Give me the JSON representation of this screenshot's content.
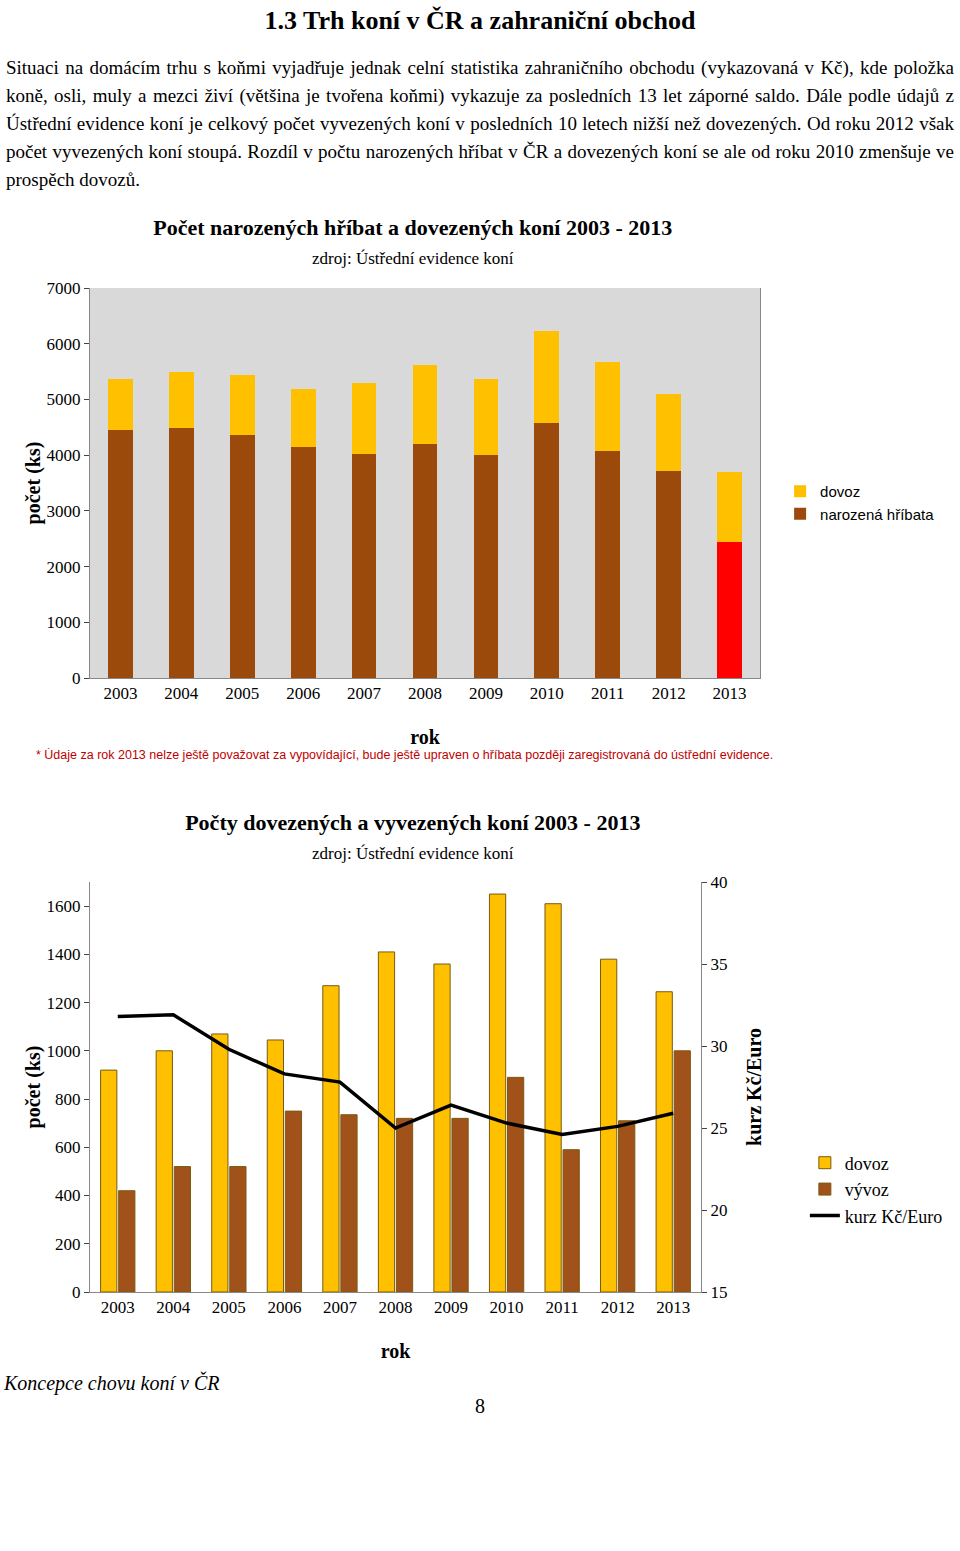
{
  "title": "1.3 Trh koní v ČR a zahraniční obchod",
  "paragraph": "Situaci na domácím trhu s koňmi vyjadřuje jednak celní statistika zahraničního obchodu (vykazovaná v Kč), kde položka koně, osli, muly a mezci živí (většina je tvořena koňmi) vykazuje za posledních 13 let záporné saldo. Dále podle údajů z Ústřední evidence koní je celkový počet vyvezených koní v posledních 10 letech nižší než dovezených. Od roku 2012 však počet vyvezených koní stoupá. Rozdíl v počtu narozených hříbat v ČR a dovezených koní se ale od roku 2010 zmenšuje ve prospěch dovozů.",
  "chart_data": [
    {
      "type": "bar",
      "title": "Počet narozených hříbat a dovezených koní 2003 - 2013",
      "subtitle": "zdroj: Ústřední evidence koní",
      "x_label": "rok",
      "y_label": "počet (ks)",
      "categories": [
        "2003",
        "2004",
        "2005",
        "2006",
        "2007",
        "2008",
        "2009",
        "2010",
        "2011",
        "2012",
        "2013"
      ],
      "series": [
        {
          "name": "narozená hříbata",
          "color": "#9c4a0c",
          "colors": [
            "#9c4a0c",
            "#9c4a0c",
            "#9c4a0c",
            "#9c4a0c",
            "#9c4a0c",
            "#9c4a0c",
            "#9c4a0c",
            "#9c4a0c",
            "#9c4a0c",
            "#9c4a0c",
            "#ff0000"
          ],
          "values": [
            4450,
            4490,
            4360,
            4150,
            4020,
            4200,
            4000,
            4580,
            4070,
            3710,
            2450
          ]
        },
        {
          "name": "dovoz",
          "color": "#ffc000",
          "values": [
            920,
            1000,
            1070,
            1045,
            1270,
            1410,
            1360,
            1650,
            1610,
            1380,
            1245
          ]
        }
      ],
      "stacked": true,
      "ylim": [
        0,
        7000
      ],
      "yticks": [
        0,
        1000,
        2000,
        3000,
        4000,
        5000,
        6000,
        7000
      ],
      "grid": false,
      "legend": "right",
      "note": "* Údaje za rok 2013 nelze ještě považovat za vypovídající, bude ještě upraven o hříbata později zaregistrovaná do ústřední evidence."
    },
    {
      "type": "bar",
      "title": "Počty dovezených a vyvezených koní 2003 - 2013",
      "subtitle": "zdroj: Ústřední evidence koní",
      "x_label": "rok",
      "y_label": "počet (ks)",
      "y2_label": "kurz Kč/Euro",
      "categories": [
        "2003",
        "2004",
        "2005",
        "2006",
        "2007",
        "2008",
        "2009",
        "2010",
        "2011",
        "2012",
        "2013"
      ],
      "series": [
        {
          "name": "dovoz",
          "color": "#ffc000",
          "values": [
            920,
            1000,
            1070,
            1045,
            1270,
            1410,
            1360,
            1650,
            1610,
            1380,
            1245
          ]
        },
        {
          "name": "vývoz",
          "color": "#a0521a",
          "values": [
            420,
            520,
            520,
            750,
            735,
            720,
            720,
            890,
            590,
            710,
            1000
          ]
        },
        {
          "name": "kurz Kč/Euro",
          "type": "line",
          "axis": "y2",
          "color": "#000000",
          "line_style": "solid",
          "values": [
            31.8,
            31.9,
            29.8,
            28.3,
            27.8,
            25.0,
            26.4,
            25.3,
            24.6,
            25.1,
            25.9
          ]
        }
      ],
      "stacked": false,
      "ylim": [
        0,
        1700
      ],
      "yticks": [
        0,
        200,
        400,
        600,
        800,
        1000,
        1200,
        1400,
        1600
      ],
      "y2lim": [
        15,
        40
      ],
      "y2ticks": [
        15,
        20,
        25,
        30,
        35,
        40
      ],
      "grid": false,
      "legend": "right"
    }
  ],
  "footer": "Koncepce chovu koní v ČR",
  "page_number": 8
}
